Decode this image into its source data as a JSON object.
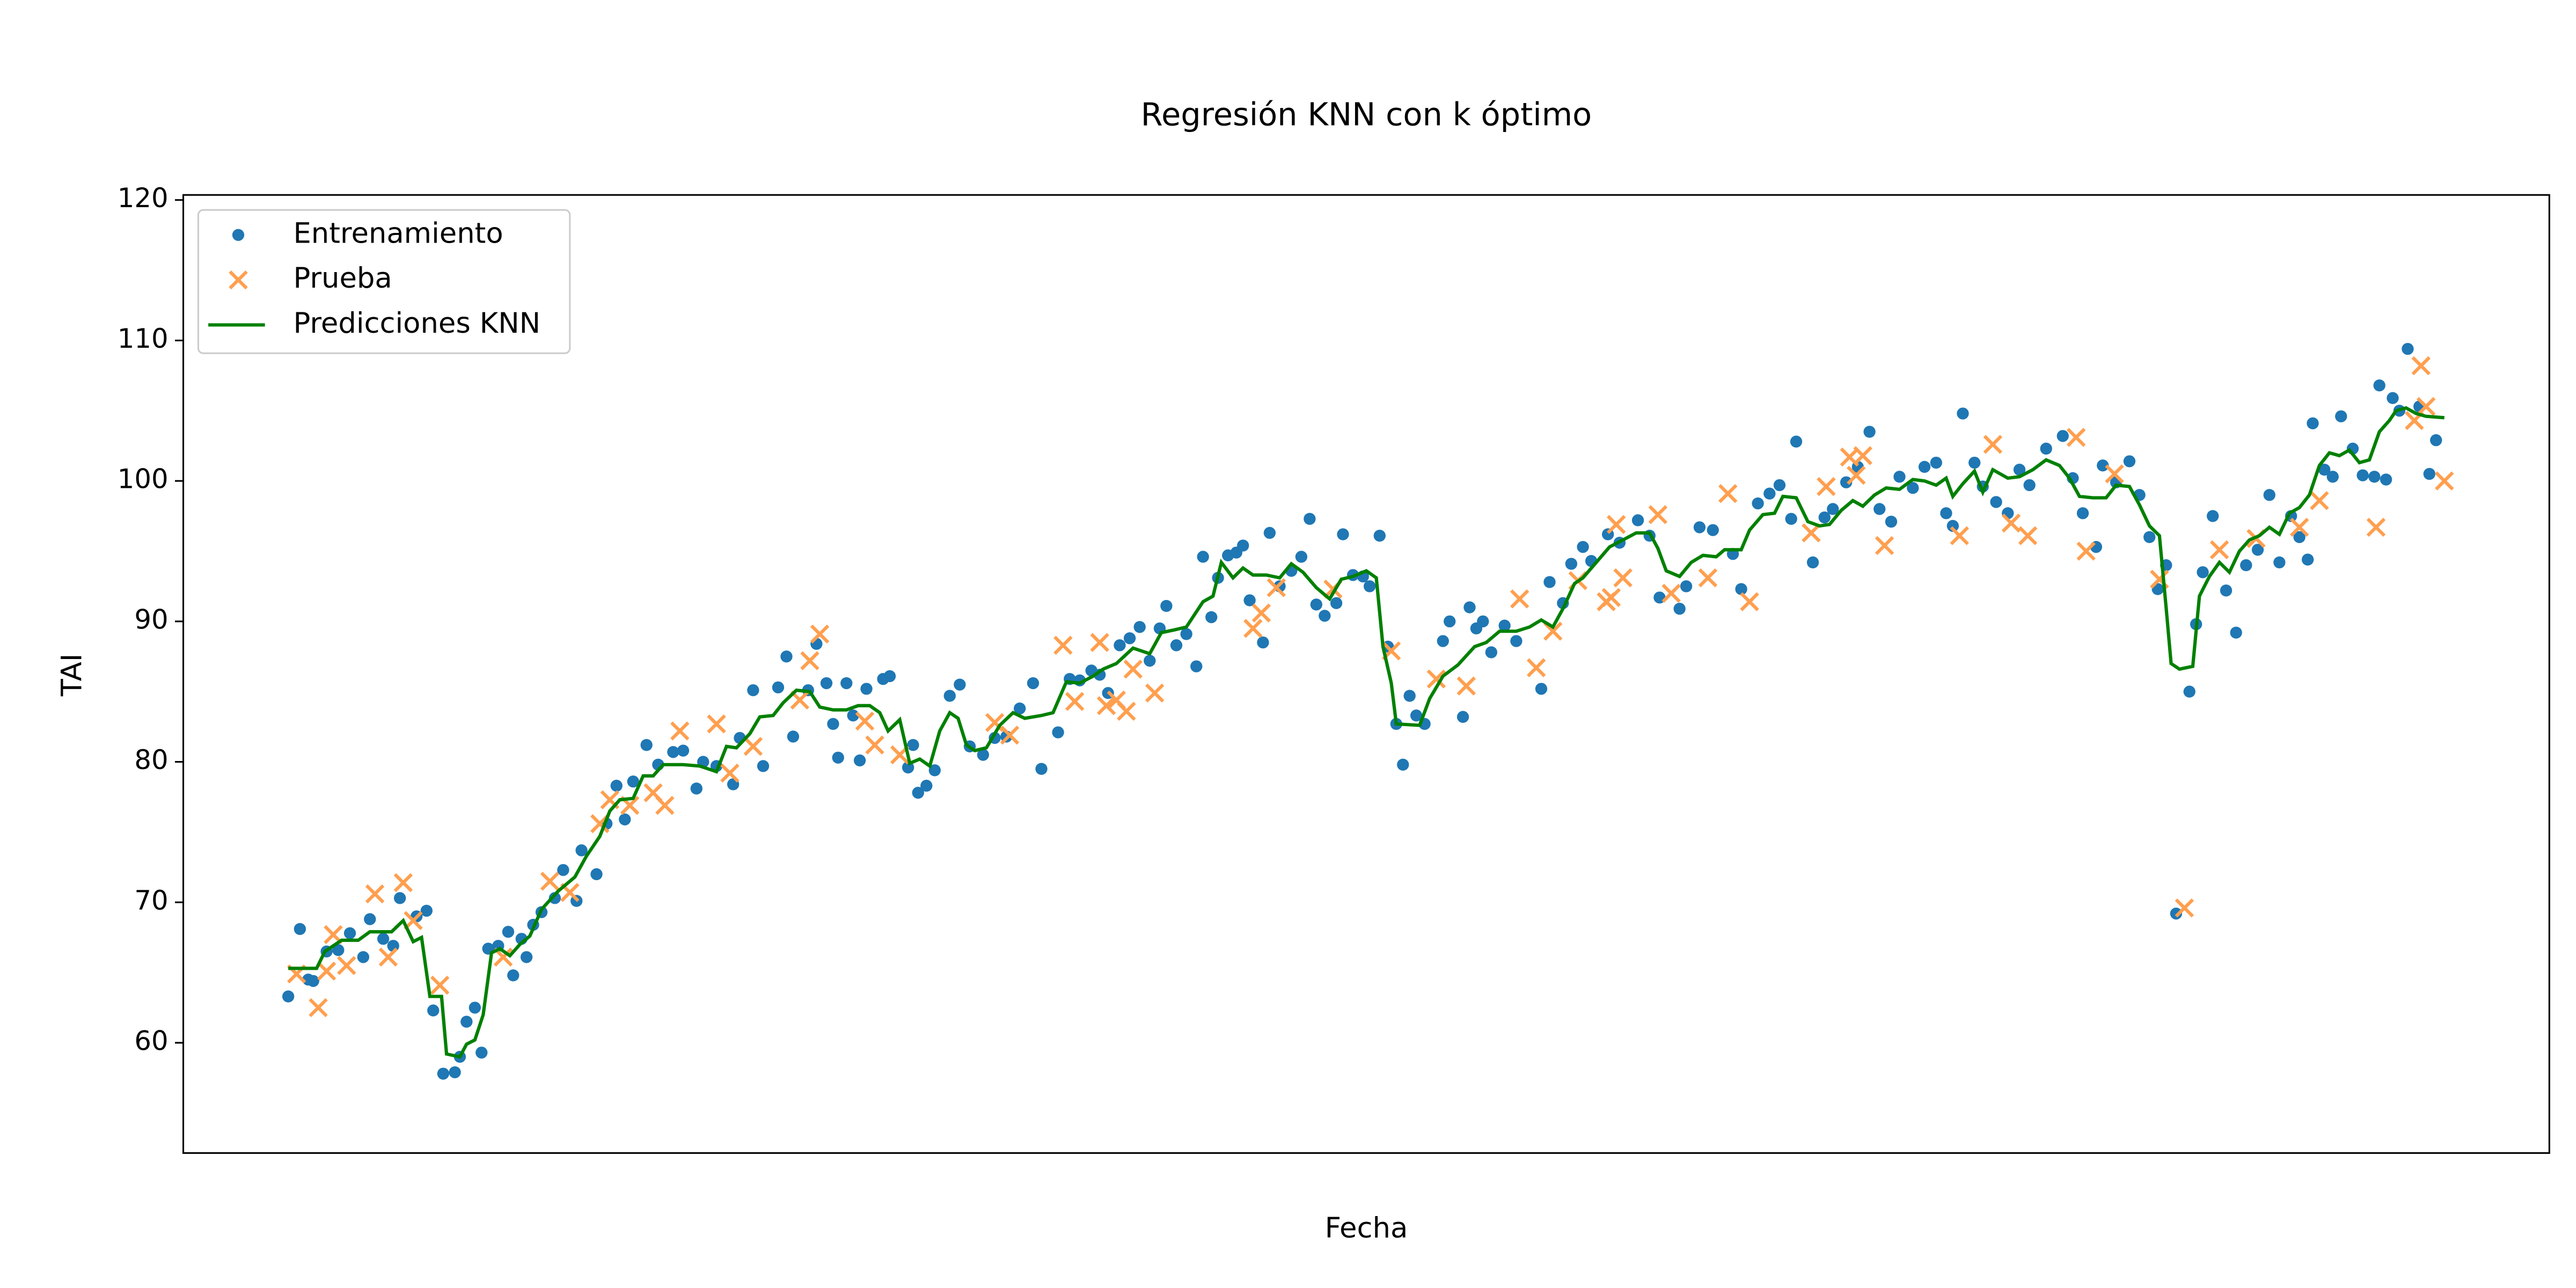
{
  "chart_data": {
    "type": "scatter",
    "title": "Regresión KNN con k óptimo",
    "x_label": "Fecha",
    "y_label": "TAI",
    "xlim": [
      110,
      1530
    ],
    "ylim": [
      52.15,
      120.36
    ],
    "yticks": [
      60,
      70,
      80,
      90,
      100,
      110,
      120
    ],
    "legend": "upper left",
    "series": [
      {
        "name": "Entrenamiento",
        "type": "scatter",
        "marker": "o",
        "color": "#1f77b4",
        "x": [
          173,
          180,
          185,
          188,
          196,
          203,
          210,
          218,
          222,
          230,
          236,
          240,
          250,
          256,
          260,
          266,
          273,
          276,
          280,
          285,
          289,
          293,
          299,
          305,
          308,
          313,
          316,
          320,
          325,
          333,
          338,
          346,
          349,
          358,
          364,
          370,
          375,
          380,
          388,
          395,
          404,
          410,
          418,
          422,
          430,
          440,
          444,
          452,
          458,
          467,
          472,
          476,
          485,
          490,
          496,
          500,
          503,
          508,
          512,
          516,
          520,
          530,
          534,
          545,
          548,
          551,
          556,
          561,
          570,
          576,
          582,
          590,
          597,
          604,
          612,
          620,
          625,
          635,
          642,
          648,
          655,
          660,
          665,
          672,
          678,
          684,
          690,
          696,
          700,
          706,
          712,
          718,
          722,
          727,
          731,
          737,
          742,
          746,
          750,
          758,
          762,
          768,
          775,
          781,
          786,
          790,
          795,
          802,
          806,
          812,
          818,
          822,
          828,
          833,
          838,
          842,
          846,
          850,
          855,
          866,
          870,
          878,
          882,
          886,
          890,
          895,
          903,
          910,
          925,
          930,
          938,
          943,
          950,
          955,
          965,
          972,
          983,
          990,
          996,
          1008,
          1012,
          1020,
          1028,
          1040,
          1045,
          1055,
          1062,
          1068,
          1075,
          1078,
          1088,
          1095,
          1100,
          1108,
          1115,
          1122,
          1128,
          1135,
          1140,
          1148,
          1155,
          1162,
          1168,
          1172,
          1178,
          1185,
          1190,
          1198,
          1205,
          1212,
          1218,
          1228,
          1238,
          1244,
          1250,
          1258,
          1262,
          1270,
          1278,
          1284,
          1290,
          1295,
          1300,
          1306,
          1314,
          1318,
          1322,
          1328,
          1336,
          1342,
          1348,
          1355,
          1362,
          1368,
          1375,
          1380,
          1385,
          1388,
          1395,
          1400,
          1405,
          1412,
          1418,
          1425,
          1428,
          1432,
          1436,
          1440,
          1445,
          1452,
          1458,
          1462
        ],
        "values": [
          63.3,
          68.1,
          64.5,
          64.4,
          66.5,
          66.6,
          67.8,
          66.1,
          68.8,
          67.4,
          66.9,
          70.3,
          69,
          69.4,
          62.3,
          57.8,
          57.9,
          59,
          61.5,
          62.5,
          59.3,
          66.7,
          66.9,
          67.9,
          64.8,
          67.4,
          66.1,
          68.4,
          69.3,
          70.3,
          72.3,
          70.1,
          73.7,
          72,
          75.6,
          78.3,
          75.9,
          78.6,
          81.2,
          79.8,
          80.7,
          80.8,
          78.1,
          80,
          79.7,
          78.4,
          81.7,
          85.1,
          79.7,
          85.3,
          87.5,
          81.8,
          85.1,
          88.4,
          85.6,
          82.7,
          80.3,
          85.6,
          83.3,
          80.1,
          85.2,
          85.9,
          86.1,
          79.6,
          81.2,
          77.8,
          78.3,
          79.4,
          84.7,
          85.5,
          81.1,
          80.5,
          81.7,
          81.8,
          83.8,
          85.6,
          79.5,
          82.1,
          85.9,
          85.8,
          86.5,
          86.2,
          84.9,
          88.3,
          88.8,
          89.6,
          87.2,
          89.5,
          91.1,
          88.3,
          89.1,
          86.8,
          94.6,
          90.3,
          93.1,
          94.7,
          94.9,
          95.4,
          91.5,
          88.5,
          96.3,
          92.5,
          93.6,
          94.6,
          97.3,
          91.2,
          90.4,
          91.3,
          96.2,
          93.3,
          93.2,
          92.5,
          96.1,
          88.2,
          82.7,
          79.8,
          84.7,
          83.3,
          82.7,
          88.6,
          90,
          83.2,
          91,
          89.5,
          90,
          87.8,
          89.7,
          88.6,
          85.2,
          92.8,
          91.3,
          94.1,
          95.3,
          94.3,
          96.2,
          95.6,
          97.2,
          96.1,
          91.7,
          90.9,
          92.5,
          96.7,
          96.5,
          94.8,
          92.3,
          98.4,
          99.1,
          99.7,
          97.3,
          102.8,
          94.2,
          97.4,
          98,
          99.9,
          101,
          103.5,
          98,
          97.1,
          100.3,
          99.5,
          101,
          101.3,
          97.7,
          96.8,
          104.8,
          101.3,
          99.6,
          98.5,
          97.7,
          100.8,
          99.7,
          102.3,
          103.2,
          100.2,
          97.7,
          95.3,
          101.1,
          99.9,
          101.4,
          99,
          96,
          92.3,
          94,
          69.2,
          85,
          89.8,
          93.5,
          97.5,
          92.2,
          89.2,
          94,
          95.1,
          99,
          94.2,
          97.5,
          96,
          94.4,
          104.1,
          100.8,
          100.3,
          104.6,
          102.3,
          100.4,
          100.3,
          106.8,
          100.1,
          105.9,
          105,
          109.4,
          105.3,
          100.5,
          102.9
        ]
      },
      {
        "name": "Prueba",
        "type": "scatter",
        "marker": "x",
        "color": "#ff9f4f",
        "x": [
          178,
          191,
          196,
          200,
          208,
          225,
          233,
          242,
          248,
          264,
          302,
          330,
          342,
          360,
          366,
          378,
          392,
          399,
          408,
          430,
          438,
          452,
          480,
          486,
          492,
          519,
          525,
          540,
          597,
          606,
          638,
          645,
          660,
          664,
          670,
          676,
          680,
          693,
          752,
          757,
          766,
          800,
          835,
          862,
          880,
          912,
          922,
          932,
          947,
          964,
          967,
          970,
          974,
          995,
          1003,
          1025,
          1037,
          1050,
          1087,
          1096,
          1110,
          1114,
          1118,
          1131,
          1176,
          1196,
          1207,
          1217,
          1246,
          1252,
          1269,
          1296,
          1311,
          1332,
          1354,
          1380,
          1392,
          1426,
          1449,
          1453,
          1456,
          1467
        ],
        "values": [
          64.9,
          62.5,
          65.1,
          67.7,
          65.5,
          70.6,
          66.1,
          71.4,
          68.7,
          64.1,
          66.1,
          71.5,
          70.7,
          75.6,
          77.3,
          76.9,
          77.8,
          76.9,
          82.2,
          82.7,
          79.2,
          81.1,
          84.4,
          87.2,
          89.1,
          82.9,
          81.2,
          80.5,
          82.8,
          81.9,
          88.3,
          84.3,
          88.5,
          84,
          84.4,
          83.6,
          86.6,
          84.9,
          89.5,
          90.6,
          92.4,
          92.3,
          87.9,
          85.9,
          85.4,
          91.6,
          86.7,
          89.3,
          92.9,
          91.4,
          91.7,
          96.9,
          93.1,
          97.6,
          92,
          93.1,
          99.1,
          91.4,
          96.3,
          99.6,
          101.7,
          100.4,
          101.8,
          95.4,
          96.1,
          102.6,
          97,
          96.1,
          103.1,
          95,
          100.5,
          93,
          69.6,
          95.1,
          95.9,
          96.7,
          98.6,
          96.7,
          104.3,
          108.2,
          105.3,
          100
        ]
      },
      {
        "name": "Predicciones KNN",
        "type": "line",
        "color": "#008000",
        "x": [
          173,
          190,
          195,
          205,
          215,
          222,
          235,
          242,
          248,
          253,
          258,
          265,
          268,
          276,
          280,
          285,
          290,
          295,
          300,
          306,
          312,
          318,
          325,
          335,
          345,
          352,
          360,
          366,
          372,
          380,
          386,
          392,
          398,
          410,
          420,
          430,
          436,
          442,
          450,
          456,
          464,
          470,
          478,
          486,
          492,
          500,
          508,
          515,
          522,
          528,
          533,
          540,
          546,
          552,
          558,
          564,
          570,
          575,
          580,
          585,
          592,
          600,
          608,
          615,
          625,
          632,
          640,
          648,
          656,
          662,
          670,
          680,
          690,
          697,
          705,
          712,
          722,
          728,
          733,
          740,
          746,
          752,
          760,
          768,
          775,
          782,
          790,
          798,
          805,
          812,
          820,
          826,
          830,
          835,
          838,
          852,
          858,
          866,
          875,
          885,
          892,
          900,
          910,
          918,
          925,
          932,
          938,
          945,
          950,
          958,
          966,
          974,
          982,
          990,
          995,
          1000,
          1008,
          1015,
          1022,
          1030,
          1035,
          1045,
          1050,
          1058,
          1065,
          1070,
          1078,
          1085,
          1092,
          1098,
          1105,
          1112,
          1118,
          1125,
          1132,
          1140,
          1148,
          1155,
          1162,
          1168,
          1172,
          1178,
          1185,
          1190,
          1196,
          1205,
          1212,
          1220,
          1228,
          1236,
          1242,
          1248,
          1256,
          1264,
          1270,
          1278,
          1284,
          1290,
          1296,
          1300,
          1303,
          1308,
          1316,
          1320,
          1326,
          1332,
          1338,
          1344,
          1350,
          1356,
          1362,
          1368,
          1374,
          1380,
          1386,
          1392,
          1398,
          1404,
          1410,
          1416,
          1422,
          1428,
          1434,
          1438,
          1444,
          1450,
          1456,
          1467
        ],
        "values": [
          65.3,
          65.3,
          66.5,
          67.3,
          67.3,
          67.9,
          67.9,
          68.7,
          67.2,
          67.5,
          63.3,
          63.3,
          59.2,
          59,
          59.9,
          60.2,
          62,
          66.4,
          66.7,
          66.2,
          67,
          67.6,
          69.5,
          70.8,
          71.8,
          73.3,
          74.7,
          76.5,
          77.3,
          77.4,
          79,
          79,
          79.8,
          79.8,
          79.7,
          79.3,
          81.1,
          81,
          82,
          83.2,
          83.3,
          84.2,
          85.1,
          85,
          83.9,
          83.7,
          83.7,
          84,
          84,
          83.5,
          82.2,
          83,
          79.9,
          80.2,
          79.7,
          82.2,
          83.5,
          83.1,
          81.2,
          80.8,
          81,
          82.6,
          83.5,
          83.1,
          83.3,
          83.5,
          85.7,
          85.6,
          86.1,
          86.6,
          87,
          88.1,
          87.7,
          89.2,
          89.4,
          89.6,
          91.4,
          91.8,
          94.2,
          93.1,
          93.8,
          93.3,
          93.3,
          93.1,
          94.1,
          93.5,
          92.4,
          91.6,
          93,
          93.2,
          93.6,
          93.1,
          88.2,
          85.6,
          82.7,
          82.6,
          84.5,
          86.1,
          86.9,
          88.2,
          88.5,
          89.3,
          89.3,
          89.6,
          90.1,
          89.6,
          90.9,
          92.7,
          93.1,
          94.2,
          95.3,
          95.8,
          96.3,
          96.3,
          95.2,
          93.6,
          93.2,
          94.2,
          94.7,
          94.6,
          95.1,
          95.1,
          96.5,
          97.6,
          97.7,
          98.9,
          98.8,
          97.1,
          96.8,
          96.9,
          97.9,
          98.6,
          98.2,
          99,
          99.5,
          99.4,
          100.1,
          100,
          99.7,
          100.2,
          98.9,
          99.8,
          100.7,
          99.2,
          100.8,
          100.2,
          100.3,
          100.8,
          101.5,
          101.1,
          100.2,
          98.9,
          98.8,
          98.8,
          99.7,
          99.6,
          98.3,
          96.8,
          96.1,
          91,
          87,
          86.6,
          86.8,
          91.8,
          93.2,
          94.2,
          93.5,
          95,
          95.8,
          96.1,
          96.7,
          96.2,
          97.7,
          98.1,
          99,
          101.1,
          102,
          101.8,
          102.2,
          101.3,
          101.5,
          103.5,
          104.3,
          105,
          105.2,
          104.8,
          104.6,
          104.5
        ]
      }
    ]
  }
}
